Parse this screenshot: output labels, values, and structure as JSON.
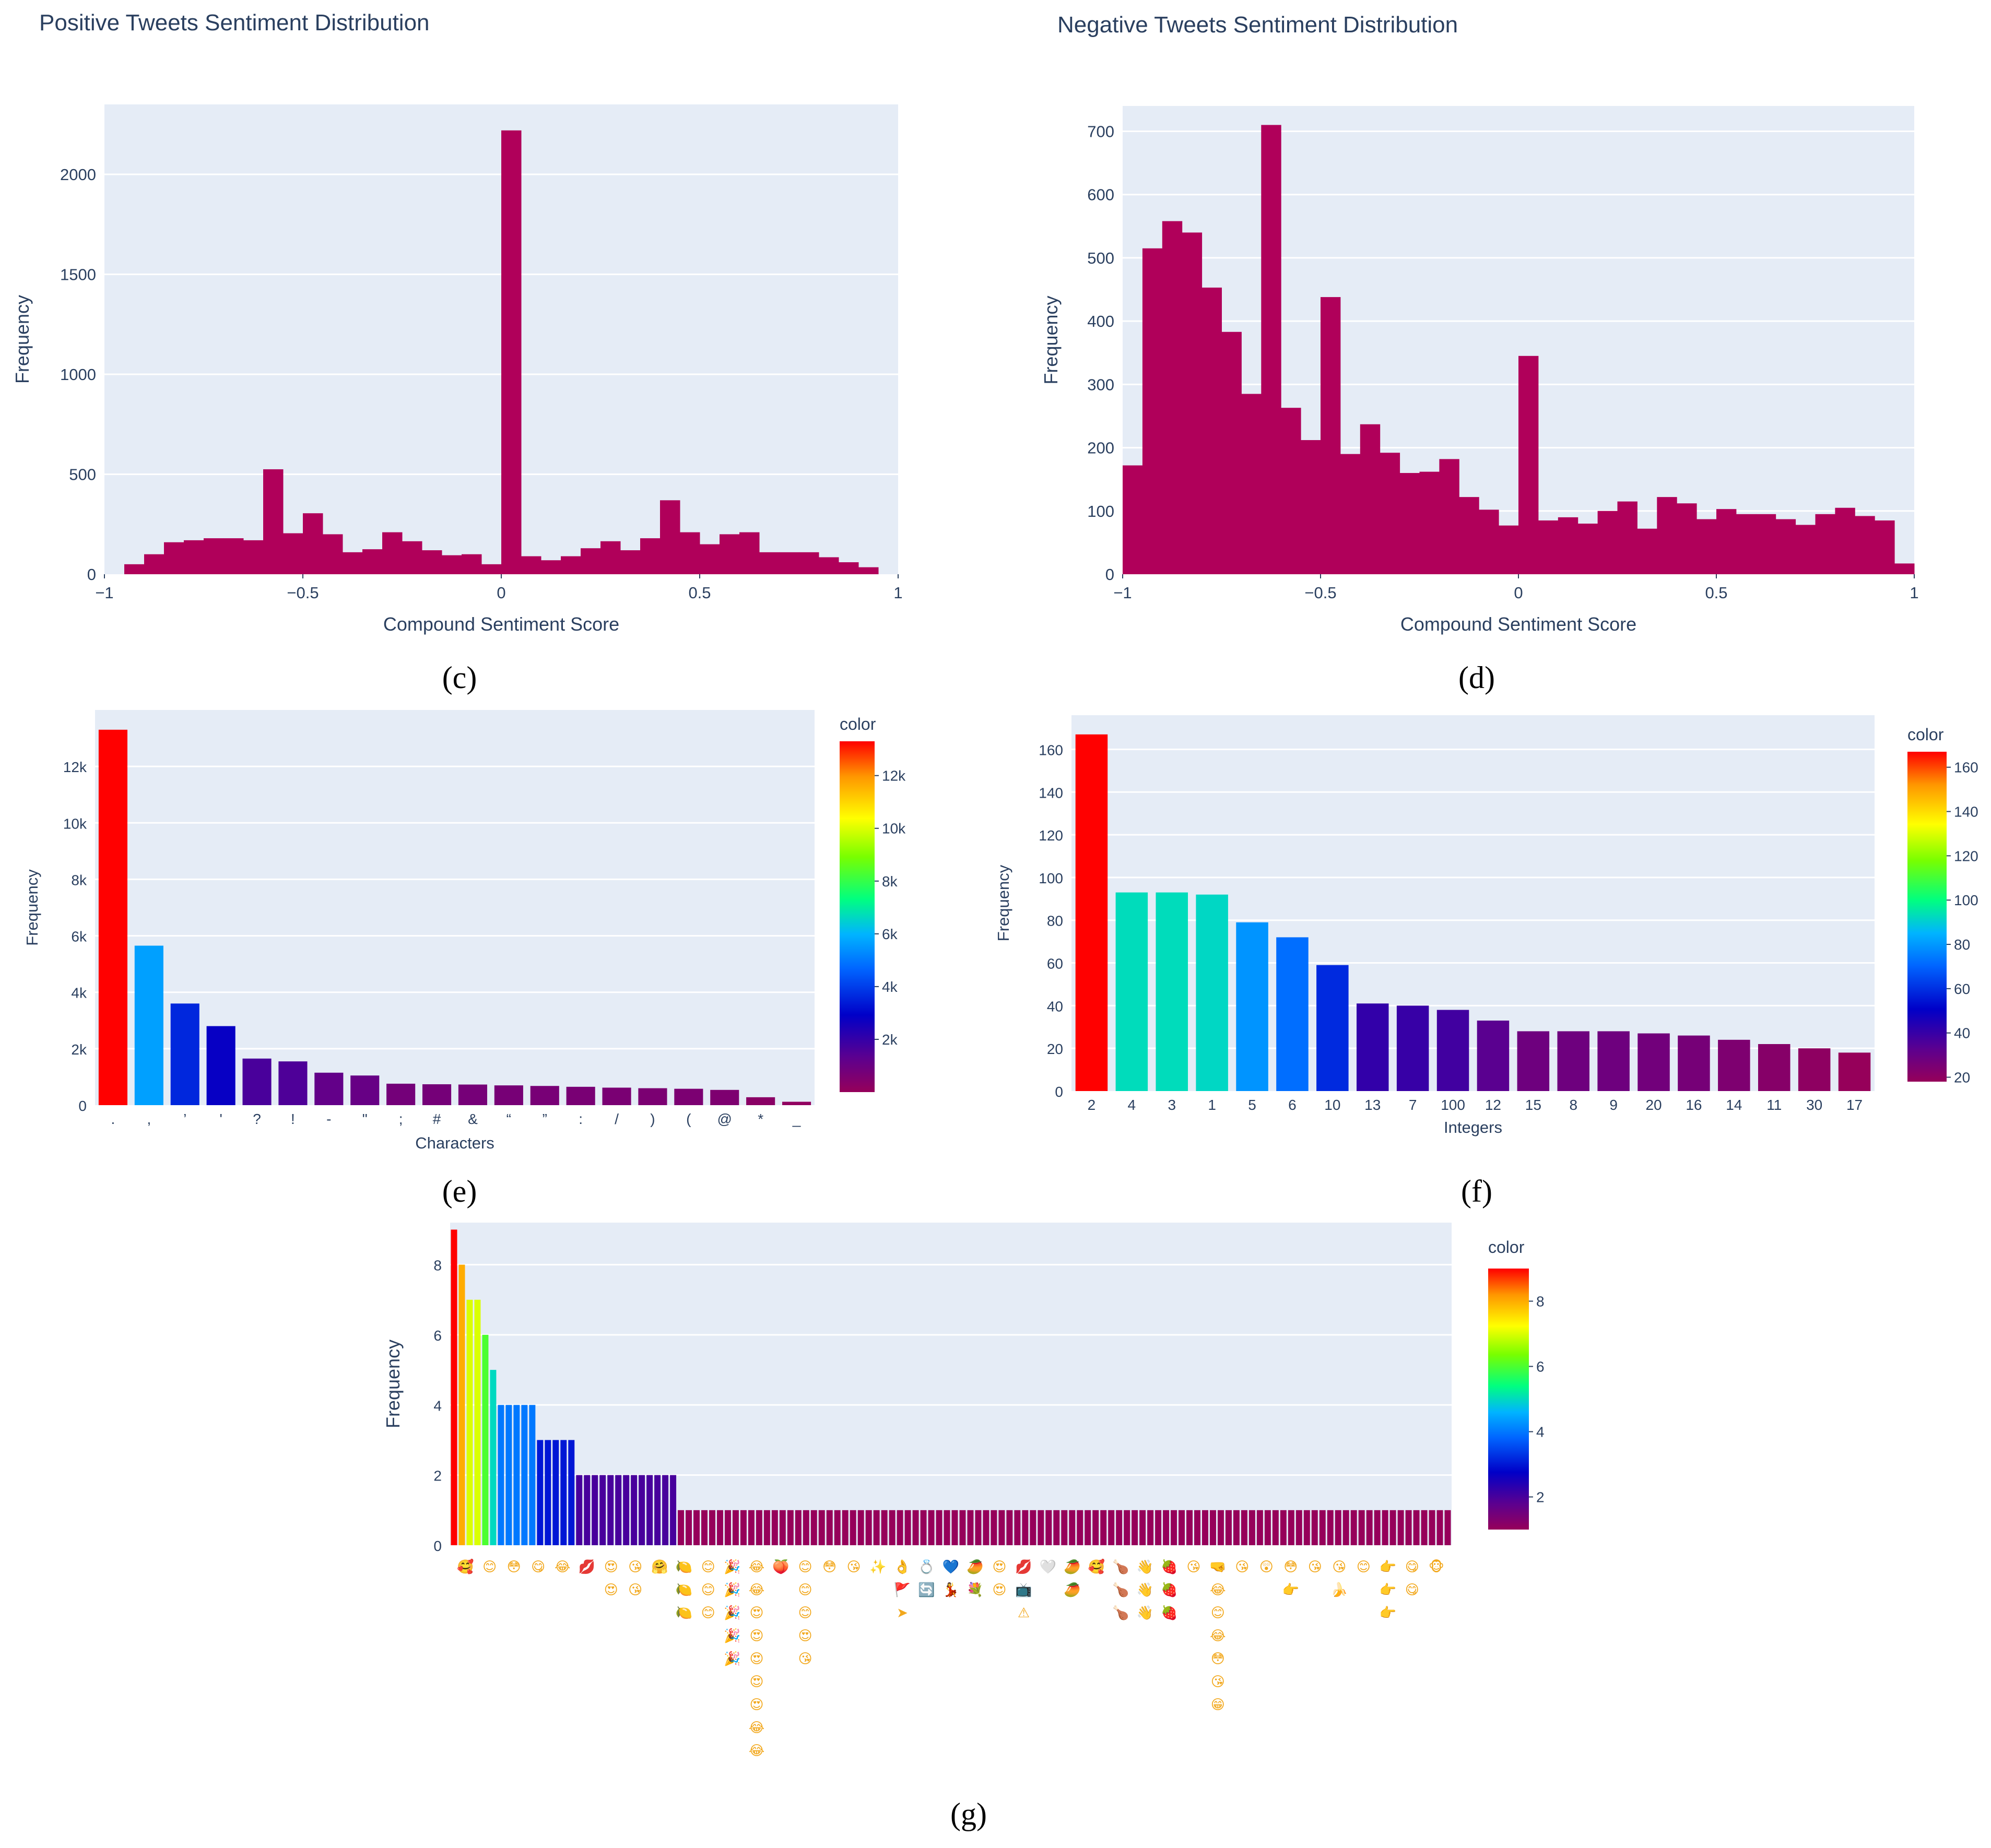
{
  "chart_data": [
    {
      "id": "c",
      "panel_label": "(c)",
      "type": "bar",
      "title": "Positive Tweets Sentiment Distribution",
      "xlabel": "Compound Sentiment Score",
      "ylabel": "Frequency",
      "xlim": [
        -1,
        1
      ],
      "ylim": [
        0,
        2350
      ],
      "xticks": [
        {
          "v": -1,
          "t": "−1"
        },
        {
          "v": -0.5,
          "t": "−0.5"
        },
        {
          "v": 0,
          "t": "0"
        },
        {
          "v": 0.5,
          "t": "0.5"
        },
        {
          "v": 1,
          "t": "1"
        }
      ],
      "yticks": [
        {
          "v": 0,
          "t": "0"
        },
        {
          "v": 500,
          "t": "500"
        },
        {
          "v": 1000,
          "t": "1000"
        },
        {
          "v": 1500,
          "t": "1500"
        },
        {
          "v": 2000,
          "t": "2000"
        }
      ],
      "bin_start": -0.95,
      "bin_width": 0.05,
      "values": [
        50,
        100,
        160,
        170,
        180,
        180,
        170,
        525,
        205,
        305,
        200,
        110,
        125,
        210,
        165,
        120,
        95,
        100,
        50,
        2220,
        90,
        70,
        90,
        130,
        165,
        120,
        180,
        370,
        210,
        150,
        200,
        210,
        110,
        110,
        110,
        85,
        60,
        35
      ],
      "bar_color": "#b0005a",
      "grid": true
    },
    {
      "id": "d",
      "panel_label": "(d)",
      "type": "bar",
      "title": "Negative Tweets Sentiment Distribution",
      "xlabel": "Compound Sentiment Score",
      "ylabel": "Frequency",
      "xlim": [
        -1,
        1
      ],
      "ylim": [
        0,
        740
      ],
      "xticks": [
        {
          "v": -1,
          "t": "−1"
        },
        {
          "v": -0.5,
          "t": "−0.5"
        },
        {
          "v": 0,
          "t": "0"
        },
        {
          "v": 0.5,
          "t": "0.5"
        },
        {
          "v": 1,
          "t": "1"
        }
      ],
      "yticks": [
        {
          "v": 0,
          "t": "0"
        },
        {
          "v": 100,
          "t": "100"
        },
        {
          "v": 200,
          "t": "200"
        },
        {
          "v": 300,
          "t": "300"
        },
        {
          "v": 400,
          "t": "400"
        },
        {
          "v": 500,
          "t": "500"
        },
        {
          "v": 600,
          "t": "600"
        },
        {
          "v": 700,
          "t": "700"
        }
      ],
      "bin_start": -1,
      "bin_width": 0.05,
      "values": [
        172,
        515,
        558,
        540,
        453,
        383,
        285,
        710,
        263,
        212,
        438,
        190,
        237,
        192,
        160,
        162,
        182,
        122,
        102,
        77,
        345,
        85,
        90,
        80,
        100,
        115,
        72,
        122,
        112,
        87,
        103,
        95,
        95,
        87,
        78,
        95,
        105,
        92,
        85,
        17
      ],
      "bar_color": "#b0005a",
      "grid": true
    },
    {
      "id": "e",
      "panel_label": "(e)",
      "type": "bar",
      "xlabel": "Characters",
      "ylabel": "Frequency",
      "ylim": [
        0,
        14000
      ],
      "yticks": [
        {
          "v": 0,
          "t": "0"
        },
        {
          "v": 2000,
          "t": "2k"
        },
        {
          "v": 4000,
          "t": "4k"
        },
        {
          "v": 6000,
          "t": "6k"
        },
        {
          "v": 8000,
          "t": "8k"
        },
        {
          "v": 10000,
          "t": "10k"
        },
        {
          "v": 12000,
          "t": "12k"
        }
      ],
      "categories": [
        ".",
        ",",
        "’",
        "'",
        "?",
        "!",
        "-",
        "\"",
        ";",
        "#",
        "&",
        "“",
        "”",
        ":",
        "/",
        ")",
        "(",
        "@",
        "*",
        "_"
      ],
      "values": [
        13300,
        5650,
        3600,
        2800,
        1650,
        1550,
        1150,
        1050,
        760,
        740,
        730,
        700,
        680,
        650,
        620,
        600,
        580,
        540,
        280,
        120
      ],
      "colorbar": {
        "title": "color",
        "min": 0,
        "max": 13300,
        "ticks": [
          {
            "v": 2000,
            "t": "2k"
          },
          {
            "v": 4000,
            "t": "4k"
          },
          {
            "v": 6000,
            "t": "6k"
          },
          {
            "v": 8000,
            "t": "8k"
          },
          {
            "v": 10000,
            "t": "10k"
          },
          {
            "v": 12000,
            "t": "12k"
          }
        ]
      },
      "grid": true
    },
    {
      "id": "f",
      "panel_label": "(f)",
      "type": "bar",
      "xlabel": "Integers",
      "ylabel": "Frequency",
      "ylim": [
        0,
        176
      ],
      "yticks": [
        {
          "v": 0,
          "t": "0"
        },
        {
          "v": 20,
          "t": "20"
        },
        {
          "v": 40,
          "t": "40"
        },
        {
          "v": 60,
          "t": "60"
        },
        {
          "v": 80,
          "t": "80"
        },
        {
          "v": 100,
          "t": "100"
        },
        {
          "v": 120,
          "t": "120"
        },
        {
          "v": 140,
          "t": "140"
        },
        {
          "v": 160,
          "t": "160"
        }
      ],
      "categories": [
        "2",
        "4",
        "3",
        "1",
        "5",
        "6",
        "10",
        "13",
        "7",
        "100",
        "12",
        "15",
        "8",
        "9",
        "20",
        "16",
        "14",
        "11",
        "30",
        "17"
      ],
      "values": [
        167,
        93,
        93,
        92,
        79,
        72,
        59,
        41,
        40,
        38,
        33,
        28,
        28,
        28,
        27,
        26,
        24,
        22,
        20,
        18
      ],
      "colorbar": {
        "title": "color",
        "min": 18,
        "max": 167,
        "ticks": [
          {
            "v": 20,
            "t": "20"
          },
          {
            "v": 40,
            "t": "40"
          },
          {
            "v": 60,
            "t": "60"
          },
          {
            "v": 80,
            "t": "80"
          },
          {
            "v": 100,
            "t": "100"
          },
          {
            "v": 120,
            "t": "120"
          },
          {
            "v": 140,
            "t": "140"
          },
          {
            "v": 160,
            "t": "160"
          }
        ]
      },
      "grid": true
    },
    {
      "id": "g",
      "panel_label": "(g)",
      "type": "bar",
      "ylabel": "Frequency",
      "ylim": [
        0,
        9.2
      ],
      "yticks": [
        {
          "v": 0,
          "t": "0"
        },
        {
          "v": 2,
          "t": "2"
        },
        {
          "v": 4,
          "t": "4"
        },
        {
          "v": 6,
          "t": "6"
        },
        {
          "v": 8,
          "t": "8"
        }
      ],
      "values": [
        9,
        8,
        7,
        7,
        6,
        5,
        4,
        4,
        4,
        4,
        4,
        3,
        3,
        3,
        3,
        3,
        2,
        2,
        2,
        2,
        2,
        2,
        2,
        2,
        2,
        2,
        2,
        2,
        2,
        1,
        1,
        1,
        1,
        1,
        1,
        1,
        1,
        1,
        1,
        1,
        1,
        1,
        1,
        1,
        1,
        1,
        1,
        1,
        1,
        1,
        1,
        1,
        1,
        1,
        1,
        1,
        1,
        1,
        1,
        1,
        1,
        1,
        1,
        1,
        1,
        1,
        1,
        1,
        1,
        1,
        1,
        1,
        1,
        1,
        1,
        1,
        1,
        1,
        1,
        1,
        1,
        1,
        1,
        1,
        1,
        1,
        1,
        1,
        1,
        1,
        1,
        1,
        1,
        1,
        1,
        1,
        1,
        1,
        1,
        1,
        1,
        1,
        1,
        1,
        1,
        1,
        1,
        1,
        1,
        1,
        1,
        1,
        1,
        1,
        1,
        1,
        1,
        1,
        1,
        1,
        1,
        1,
        1,
        1,
        1,
        1,
        1,
        1
      ],
      "x_tick_labels": [
        [
          "🥰"
        ],
        [
          "😊"
        ],
        [
          "😳"
        ],
        [
          "😋"
        ],
        [
          "😂"
        ],
        [
          "💋"
        ],
        [
          "😍",
          "😍"
        ],
        [
          "😘",
          "😘"
        ],
        [
          "🤗"
        ],
        [
          "🍋",
          "🍋",
          "🍋"
        ],
        [
          "😊",
          "😊",
          "😊"
        ],
        [
          "🎉",
          "🎉",
          "🎉",
          "🎉",
          "🎉"
        ],
        [
          "😂",
          "😂",
          "😍",
          "😍",
          "😍",
          "😍",
          "😍",
          "😂",
          "😂"
        ],
        [
          "🍑"
        ],
        [
          "😊",
          "😊",
          "😊",
          "😍",
          "😘"
        ],
        [
          "😳"
        ],
        [
          "😘"
        ],
        [
          "✨"
        ],
        [
          "👌",
          "🚩",
          "➤"
        ],
        [
          "💍",
          "🔄"
        ],
        [
          "💙",
          "💃"
        ],
        [
          "🥭",
          "💐"
        ],
        [
          "😍",
          "😍"
        ],
        [
          "💋",
          "📺",
          "⚠"
        ],
        [
          "🤍"
        ],
        [
          "🥭",
          "🥭"
        ],
        [
          "🥰"
        ],
        [
          "🍗",
          "🍗",
          "🍗"
        ],
        [
          "👋",
          "👋",
          "👋"
        ],
        [
          "🍓",
          "🍓",
          "🍓"
        ],
        [
          "😘"
        ],
        [
          "🤜",
          "😂",
          "😊",
          "😂",
          "😳",
          "😘",
          "😁"
        ],
        [
          "😘"
        ],
        [
          "😲"
        ],
        [
          "😳",
          "👉"
        ],
        [
          "😘"
        ],
        [
          "😘",
          "🍌"
        ],
        [
          "😊"
        ],
        [
          "👉",
          "👉",
          "👉"
        ],
        [
          "😋",
          "😋"
        ],
        [
          "🐵"
        ]
      ],
      "colorbar": {
        "title": "color",
        "min": 1,
        "max": 9,
        "ticks": [
          {
            "v": 2,
            "t": "2"
          },
          {
            "v": 4,
            "t": "4"
          },
          {
            "v": 6,
            "t": "6"
          },
          {
            "v": 8,
            "t": "8"
          }
        ]
      },
      "grid": true
    }
  ]
}
